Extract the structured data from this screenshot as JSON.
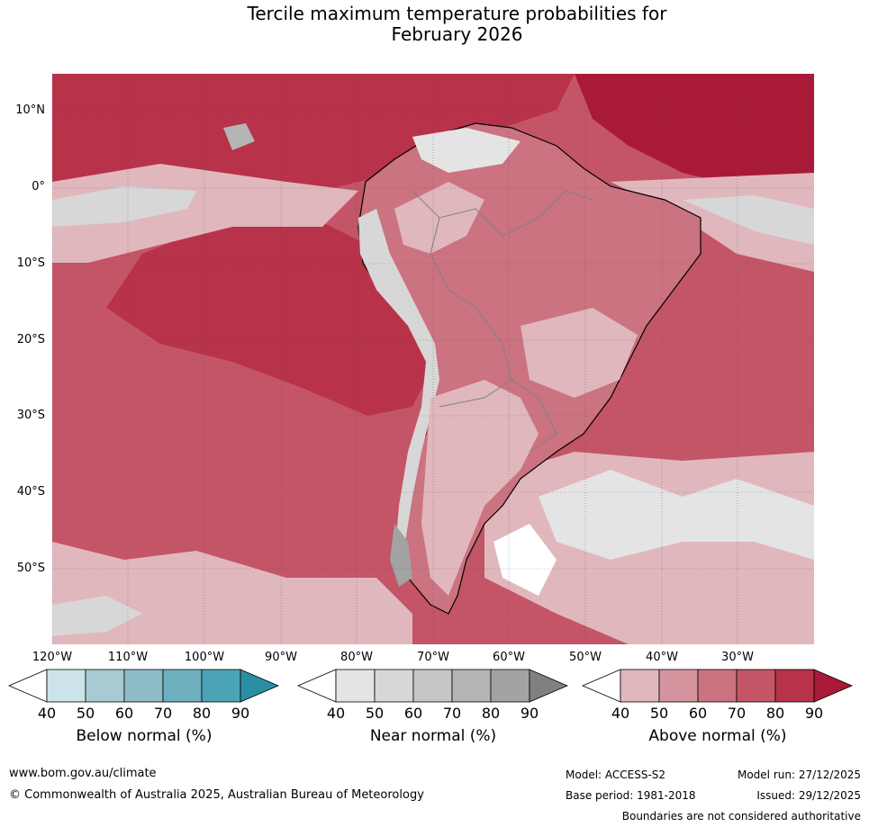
{
  "title_line1": "Tercile maximum temperature probabilities for",
  "title_line2": "February 2026",
  "lat_labels": [
    "10°N",
    "0°",
    "10°S",
    "20°S",
    "30°S",
    "40°S",
    "50°S"
  ],
  "lon_labels": [
    "120°W",
    "110°W",
    "100°W",
    "90°W",
    "80°W",
    "70°W",
    "60°W",
    "50°W",
    "40°W",
    "30°W"
  ],
  "colorbars": [
    {
      "label": "Below normal (%)",
      "ticks": [
        "40",
        "50",
        "60",
        "70",
        "80",
        "90"
      ],
      "colors": [
        "#ffffff",
        "#cce3ea",
        "#a7cbd2",
        "#8dbcc6",
        "#6eb0bf",
        "#4aa4b6",
        "#2a8fa3"
      ]
    },
    {
      "label": "Near normal (%)",
      "ticks": [
        "40",
        "50",
        "60",
        "70",
        "80",
        "90"
      ],
      "colors": [
        "#ffffff",
        "#e4e4e4",
        "#d7d7d7",
        "#c6c6c6",
        "#b5b5b5",
        "#a3a3a3",
        "#808080"
      ]
    },
    {
      "label": "Above normal (%)",
      "ticks": [
        "40",
        "50",
        "60",
        "70",
        "80",
        "90"
      ],
      "colors": [
        "#ffffff",
        "#e0b7bd",
        "#d5949d",
        "#cb7380",
        "#c35566",
        "#b8324a",
        "#a91a38"
      ]
    }
  ],
  "map_colors": {
    "ocean_high": "#b8324a",
    "land_mid": "#cb7380",
    "land_low": "#e0b7bd",
    "near": "#d7d7d7",
    "near_dark": "#b5b5b5",
    "coast": "#000000",
    "border": "#808080"
  },
  "footer": {
    "url": "www.bom.gov.au/climate",
    "copyright": "© Commonwealth of Australia 2025, Australian Bureau of Meteorology",
    "model": "Model: ACCESS-S2",
    "base_period": "Base period: 1981-2018",
    "model_run": "Model run: 27/12/2025",
    "issued": "Issued: 29/12/2025",
    "disclaimer": "Boundaries are not considered authoritative"
  }
}
